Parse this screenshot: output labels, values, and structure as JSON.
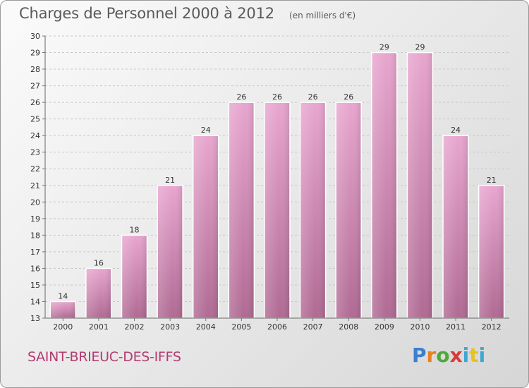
{
  "page": {
    "title": "Charges de Personnel 2000 à 2012",
    "subtitle": "(en milliers d'€)",
    "commune": "SAINT-BRIEUC-DES-IFFS",
    "logo": [
      "P",
      "r",
      "o",
      "x",
      "i",
      "t",
      "i"
    ]
  },
  "chart_data": {
    "type": "bar",
    "title": "Charges de Personnel 2000 à 2012",
    "subtitle": "(en milliers d'€)",
    "categories": [
      "2000",
      "2001",
      "2002",
      "2003",
      "2004",
      "2005",
      "2006",
      "2007",
      "2008",
      "2009",
      "2010",
      "2011",
      "2012"
    ],
    "values": [
      14,
      16,
      18,
      21,
      24,
      26,
      26,
      26,
      26,
      29,
      29,
      24,
      21
    ],
    "ylim": [
      13,
      30
    ],
    "yticks": [
      13,
      14,
      15,
      16,
      17,
      18,
      19,
      20,
      21,
      22,
      23,
      24,
      25,
      26,
      27,
      28,
      29,
      30
    ],
    "grid": true,
    "bar_color": "#d98cb8",
    "bar_color_dark": "#b8709a",
    "data_labels": true
  }
}
